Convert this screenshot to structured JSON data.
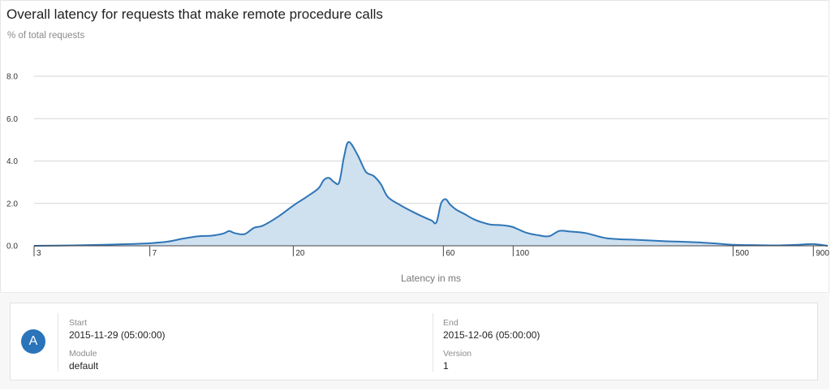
{
  "chart_data": {
    "type": "area",
    "title": "Overall latency for requests that make remote procedure calls",
    "ylabel": "% of total requests",
    "xlabel": "Latency in ms",
    "x_scale": "log",
    "xlim": [
      3,
      1000
    ],
    "ylim": [
      0,
      8
    ],
    "yticks": [
      0,
      2,
      4,
      6,
      8
    ],
    "ytick_labels": [
      "0.0",
      "2.0",
      "4.0",
      "6.0",
      "8.0"
    ],
    "xticks": [
      3,
      7,
      20,
      60,
      100,
      500,
      900
    ],
    "xtick_labels": [
      "3",
      "7",
      "20",
      "60",
      "100",
      "500",
      "900"
    ],
    "grid": true,
    "series": [
      {
        "name": "",
        "color": "#2e75b6",
        "fill": "#cfe0ef",
        "x": [
          3,
          4,
          5,
          6,
          7,
          8,
          9,
          10,
          11,
          12,
          12.5,
          13,
          14,
          15,
          16,
          18,
          20,
          22,
          24,
          25,
          26,
          27,
          28,
          29,
          30,
          32,
          34,
          36,
          38,
          40,
          44,
          48,
          52,
          55,
          57,
          59,
          61,
          63,
          66,
          70,
          75,
          80,
          85,
          90,
          95,
          100,
          110,
          120,
          130,
          140,
          150,
          170,
          200,
          250,
          300,
          400,
          500,
          600,
          700,
          800,
          900,
          1000
        ],
        "values": [
          0.0,
          0.02,
          0.05,
          0.08,
          0.12,
          0.2,
          0.35,
          0.45,
          0.48,
          0.58,
          0.7,
          0.6,
          0.55,
          0.85,
          0.95,
          1.4,
          1.9,
          2.3,
          2.7,
          3.1,
          3.2,
          3.0,
          3.0,
          4.2,
          4.9,
          4.3,
          3.5,
          3.3,
          2.9,
          2.3,
          1.9,
          1.6,
          1.35,
          1.2,
          1.1,
          2.0,
          2.2,
          1.95,
          1.7,
          1.5,
          1.25,
          1.1,
          1.0,
          0.98,
          0.95,
          0.88,
          0.62,
          0.5,
          0.45,
          0.7,
          0.68,
          0.6,
          0.35,
          0.28,
          0.22,
          0.15,
          0.05,
          0.03,
          0.02,
          0.05,
          0.08,
          0.0
        ]
      }
    ]
  },
  "legend": {
    "badge_letter": "A",
    "start_label": "Start",
    "start_value": "2015-11-29 (05:00:00)",
    "module_label": "Module",
    "module_value": "default",
    "end_label": "End",
    "end_value": "2015-12-06 (05:00:00)",
    "version_label": "Version",
    "version_value": "1"
  },
  "colors": {
    "accent": "#2a74b9",
    "line": "#2e75b6",
    "area": "#cfe0ef"
  }
}
